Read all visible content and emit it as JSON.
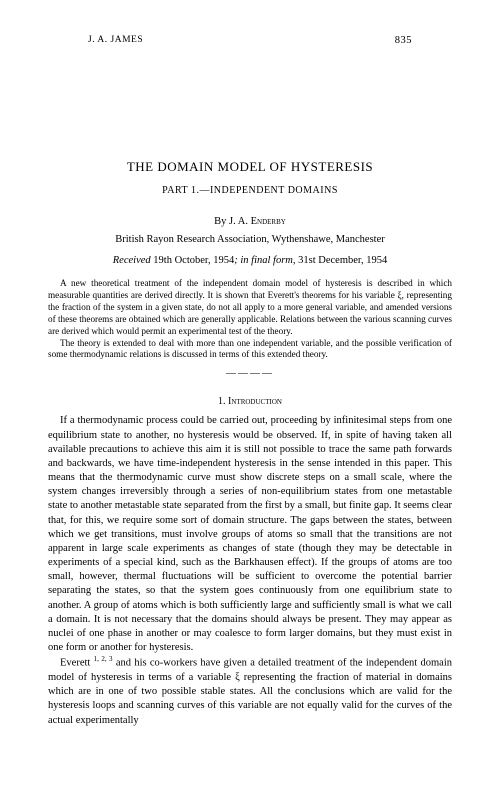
{
  "page": {
    "running_head": "J. A. JAMES",
    "page_number": "835"
  },
  "title": "THE DOMAIN MODEL OF HYSTERESIS",
  "subtitle": "PART 1.—INDEPENDENT DOMAINS",
  "byline_prefix": "By ",
  "author": "J. A. Enderby",
  "affiliation": "British Rayon Research Association, Wythenshawe, Manchester",
  "dates": {
    "received_label": "Received ",
    "received_date": "19th October, 1954",
    "separator": "; in final form, ",
    "final_date": "31st December, 1954"
  },
  "abstract": {
    "para1": "A new theoretical treatment of the independent domain model of hysteresis is described in which measurable quantities are derived directly. It is shown that Everett's theorems for his variable ξ, representing the fraction of the system in a given state, do not all apply to a more general variable, and amended versions of these theorems are obtained which are generally applicable. Relations between the various scanning curves are derived which would permit an experimental test of the theory.",
    "para2": "The theory is extended to deal with more than one independent variable, and the possible verification of some thermodynamic relations is discussed in terms of this extended theory."
  },
  "section_heading": "1. Introduction",
  "body": {
    "para1": "If a thermodynamic process could be carried out, proceeding by infinitesimal steps from one equilibrium state to another, no hysteresis would be observed. If, in spite of having taken all available precautions to achieve this aim it is still not possible to trace the same path forwards and backwards, we have time-independent hysteresis in the sense intended in this paper. This means that the thermodynamic curve must show discrete steps on a small scale, where the system changes irreversibly through a series of non-equilibrium states from one metastable state to another metastable state separated from the first by a small, but finite gap. It seems clear that, for this, we require some sort of domain structure. The gaps between the states, between which we get transitions, must involve groups of atoms so small that the transitions are not apparent in large scale experiments as changes of state (though they may be detectable in experiments of a special kind, such as the Barkhausen effect). If the groups of atoms are too small, however, thermal fluctuations will be sufficient to overcome the potential barrier separating the states, so that the system goes continuously from one equilibrium state to another. A group of atoms which is both sufficiently large and sufficiently small is what we call a domain. It is not necessary that the domains should always be present. They may appear as nuclei of one phase in another or may coalesce to form larger domains, but they must exist in one form or another for hysteresis.",
    "para2_start": "Everett ",
    "para2_refs": "1, 2, 3",
    "para2_end": " and his co-workers have given a detailed treatment of the independent domain model of hysteresis in terms of a variable ξ representing the fraction of material in domains which are in one of two possible stable states. All the conclusions which are valid for the hysteresis loops and scanning curves of this variable are not equally valid for the curves of the actual experimentally"
  }
}
